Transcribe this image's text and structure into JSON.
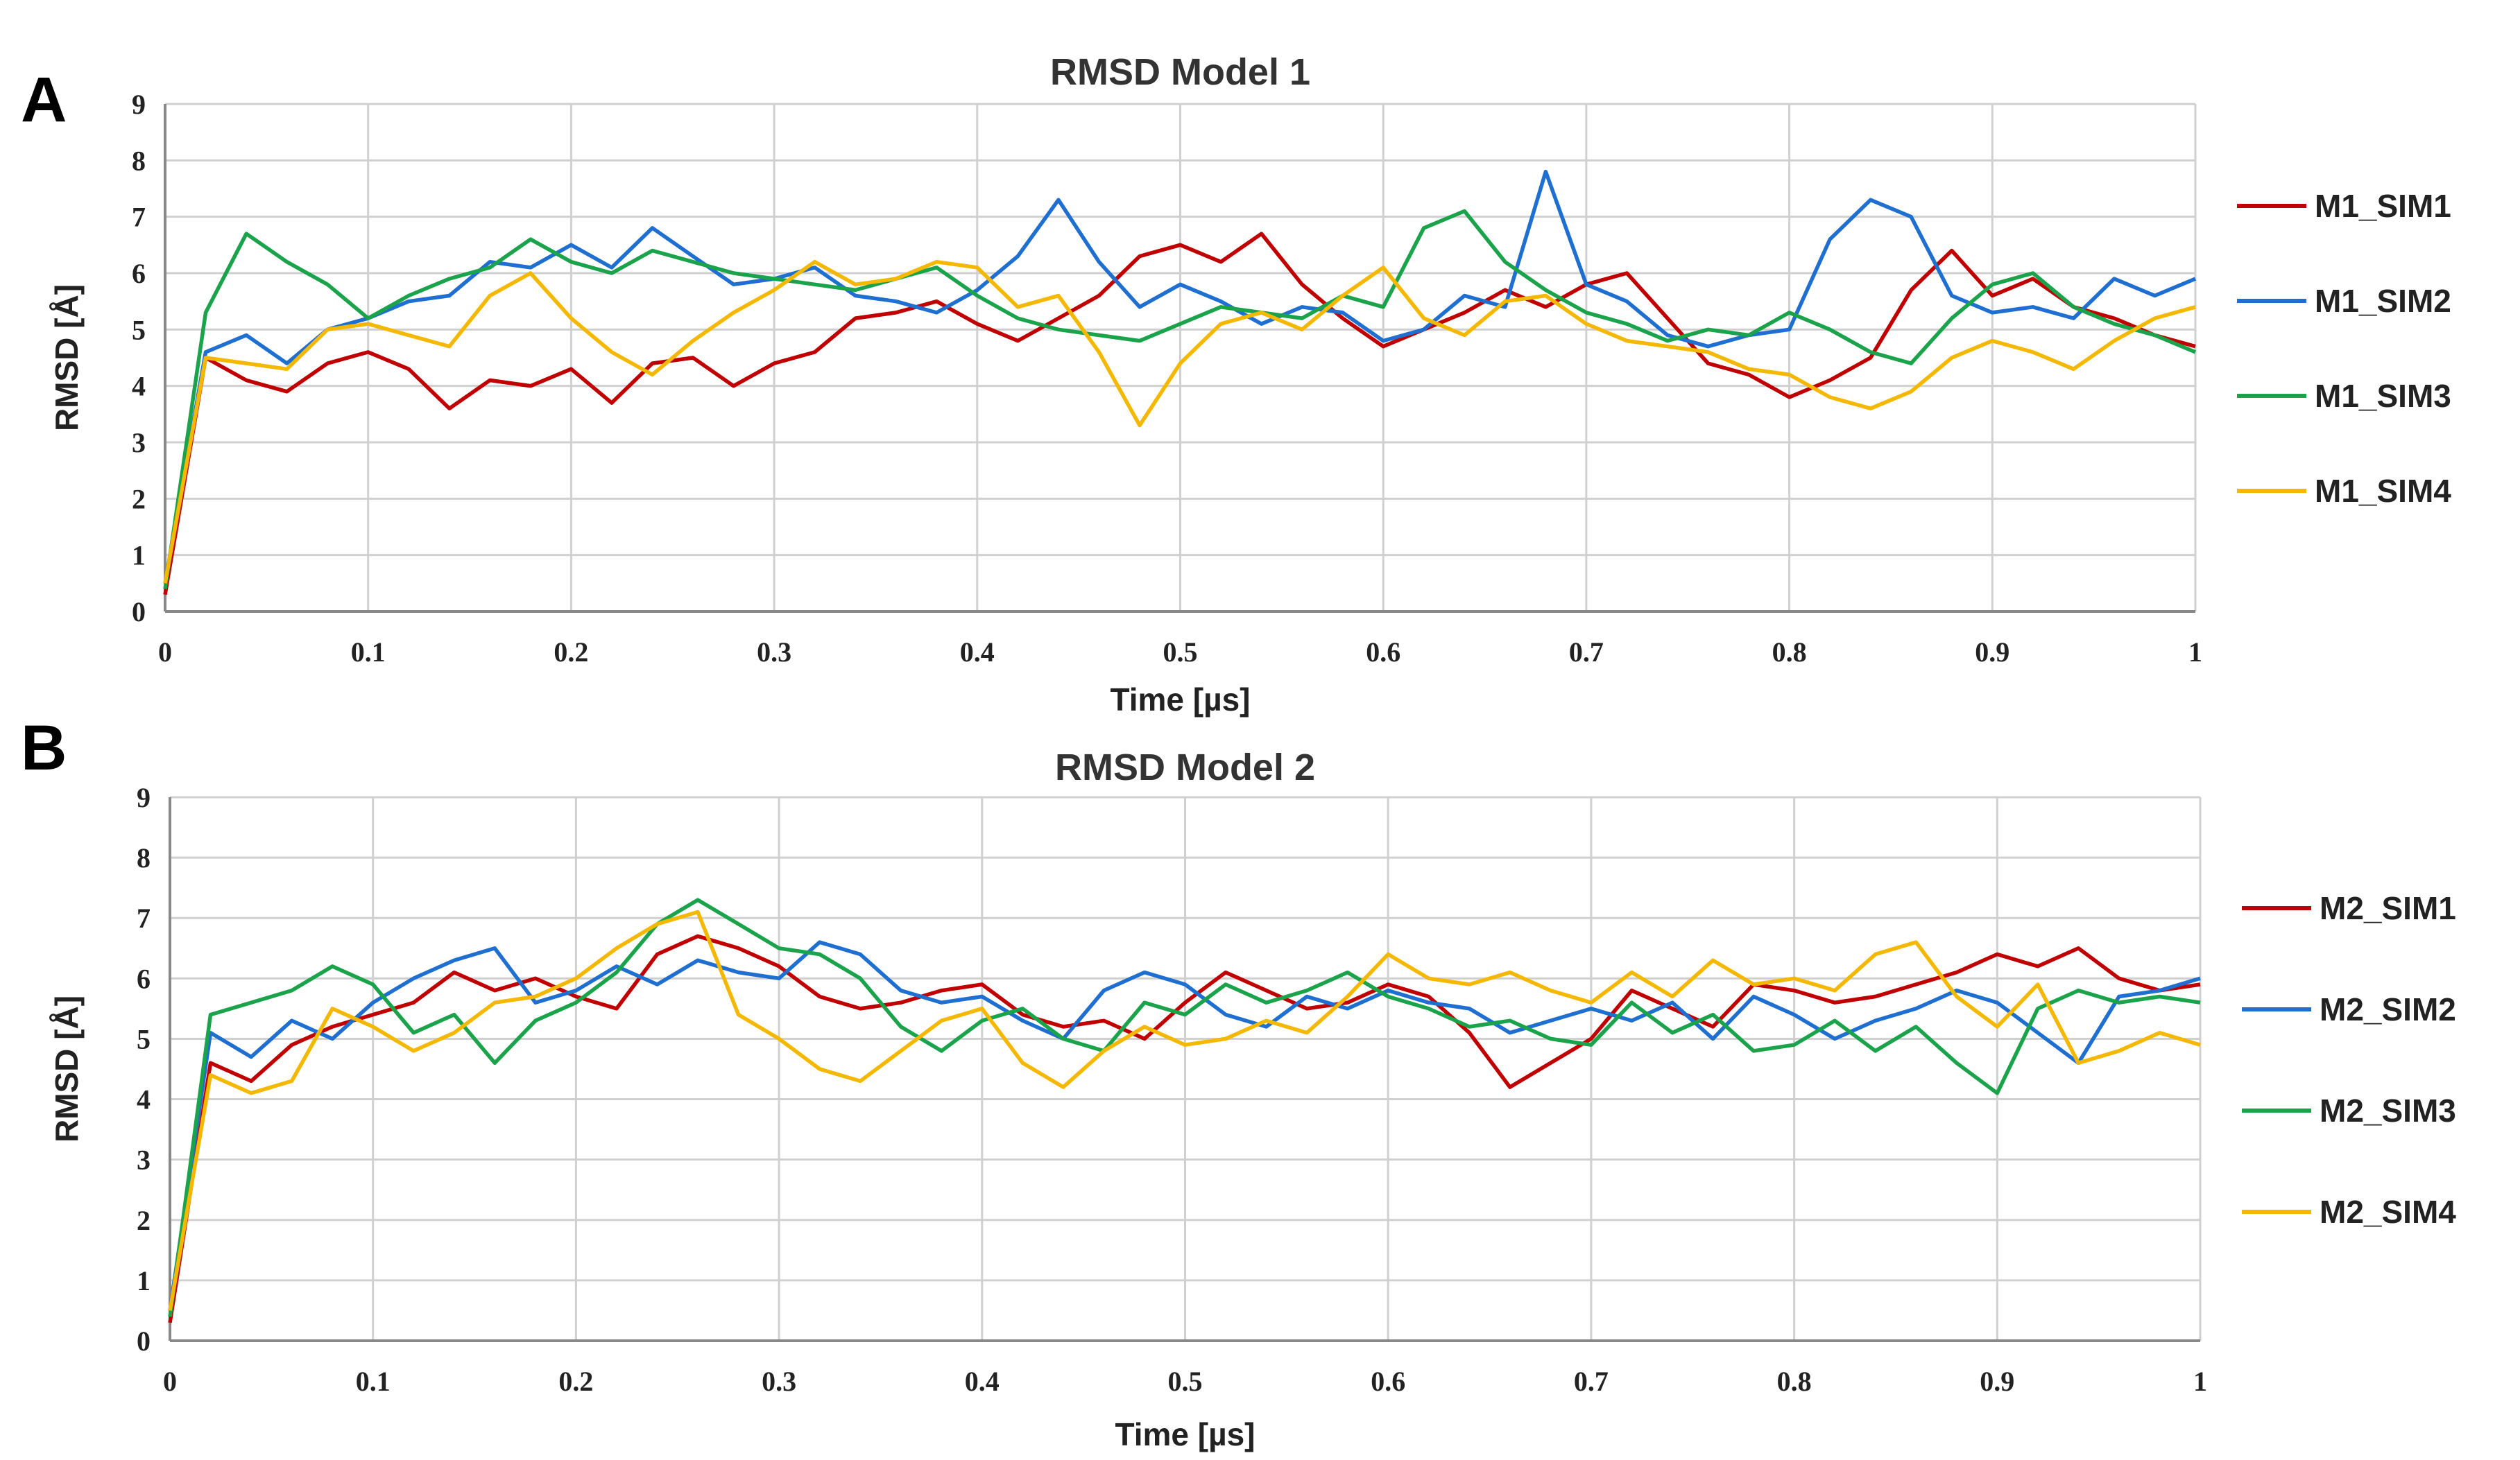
{
  "chart_data": [
    {
      "panel_label": "A",
      "type": "line",
      "title": "RMSD Model 1",
      "xlabel": "Time [µs]",
      "ylabel": "RMSD [Å]",
      "xlim": [
        0,
        1
      ],
      "ylim": [
        0,
        9
      ],
      "grid": true,
      "legend_position": "right",
      "x_ticks": [
        "0",
        "0.1",
        "0.2",
        "0.3",
        "0.4",
        "0.5",
        "0.6",
        "0.7",
        "0.8",
        "0.9",
        "1"
      ],
      "y_ticks": [
        "0",
        "1",
        "2",
        "3",
        "4",
        "5",
        "6",
        "7",
        "8",
        "9"
      ],
      "x": [
        0,
        0.02,
        0.04,
        0.06,
        0.08,
        0.1,
        0.12,
        0.14,
        0.16,
        0.18,
        0.2,
        0.22,
        0.24,
        0.26,
        0.28,
        0.3,
        0.32,
        0.34,
        0.36,
        0.38,
        0.4,
        0.42,
        0.44,
        0.46,
        0.48,
        0.5,
        0.52,
        0.54,
        0.56,
        0.58,
        0.6,
        0.62,
        0.64,
        0.66,
        0.68,
        0.7,
        0.72,
        0.74,
        0.76,
        0.78,
        0.8,
        0.82,
        0.84,
        0.86,
        0.88,
        0.9,
        0.92,
        0.94,
        0.96,
        0.98,
        1
      ],
      "series": [
        {
          "name": "M1_SIM1",
          "color": "#c00000",
          "values": [
            0.3,
            4.5,
            4.1,
            3.9,
            4.4,
            4.6,
            4.3,
            3.6,
            4.1,
            4.0,
            4.3,
            3.7,
            4.4,
            4.5,
            4.0,
            4.4,
            4.6,
            5.2,
            5.3,
            5.5,
            5.1,
            4.8,
            5.2,
            5.6,
            6.3,
            6.5,
            6.2,
            6.7,
            5.8,
            5.2,
            4.7,
            5.0,
            5.3,
            5.7,
            5.4,
            5.8,
            6.0,
            5.2,
            4.4,
            4.2,
            3.8,
            4.1,
            4.5,
            5.7,
            6.4,
            5.6,
            5.9,
            5.4,
            5.2,
            4.9,
            4.7
          ]
        },
        {
          "name": "M1_SIM2",
          "color": "#1f6fd0",
          "values": [
            0.5,
            4.6,
            4.9,
            4.4,
            5.0,
            5.2,
            5.5,
            5.6,
            6.2,
            6.1,
            6.5,
            6.1,
            6.8,
            6.3,
            5.8,
            5.9,
            6.1,
            5.6,
            5.5,
            5.3,
            5.7,
            6.3,
            7.3,
            6.2,
            5.4,
            5.8,
            5.5,
            5.1,
            5.4,
            5.3,
            4.8,
            5.0,
            5.6,
            5.4,
            7.8,
            5.8,
            5.5,
            4.9,
            4.7,
            4.9,
            5.0,
            6.6,
            7.3,
            7.0,
            5.6,
            5.3,
            5.4,
            5.2,
            5.9,
            5.6,
            5.9
          ]
        },
        {
          "name": "M1_SIM3",
          "color": "#1aa34a",
          "values": [
            0.4,
            5.3,
            6.7,
            6.2,
            5.8,
            5.2,
            5.6,
            5.9,
            6.1,
            6.6,
            6.2,
            6.0,
            6.4,
            6.2,
            6.0,
            5.9,
            5.8,
            5.7,
            5.9,
            6.1,
            5.6,
            5.2,
            5.0,
            4.9,
            4.8,
            5.1,
            5.4,
            5.3,
            5.2,
            5.6,
            5.4,
            6.8,
            7.1,
            6.2,
            5.7,
            5.3,
            5.1,
            4.8,
            5.0,
            4.9,
            5.3,
            5.0,
            4.6,
            4.4,
            5.2,
            5.8,
            6.0,
            5.4,
            5.1,
            4.9,
            4.6
          ]
        },
        {
          "name": "M1_SIM4",
          "color": "#f5b800",
          "values": [
            0.5,
            4.5,
            4.4,
            4.3,
            5.0,
            5.1,
            4.9,
            4.7,
            5.6,
            6.0,
            5.2,
            4.6,
            4.2,
            4.8,
            5.3,
            5.7,
            6.2,
            5.8,
            5.9,
            6.2,
            6.1,
            5.4,
            5.6,
            4.6,
            3.3,
            4.4,
            5.1,
            5.3,
            5.0,
            5.6,
            6.1,
            5.2,
            4.9,
            5.5,
            5.6,
            5.1,
            4.8,
            4.7,
            4.6,
            4.3,
            4.2,
            3.8,
            3.6,
            3.9,
            4.5,
            4.8,
            4.6,
            4.3,
            4.8,
            5.2,
            5.4
          ]
        }
      ]
    },
    {
      "panel_label": "B",
      "type": "line",
      "title": "RMSD Model 2",
      "xlabel": "Time [µs]",
      "ylabel": "RMSD [Å]",
      "xlim": [
        0,
        1
      ],
      "ylim": [
        0,
        9
      ],
      "grid": true,
      "legend_position": "right",
      "x_ticks": [
        "0",
        "0.1",
        "0.2",
        "0.3",
        "0.4",
        "0.5",
        "0.6",
        "0.7",
        "0.8",
        "0.9",
        "1"
      ],
      "y_ticks": [
        "0",
        "1",
        "2",
        "3",
        "4",
        "5",
        "6",
        "7",
        "8",
        "9"
      ],
      "x": [
        0,
        0.02,
        0.04,
        0.06,
        0.08,
        0.1,
        0.12,
        0.14,
        0.16,
        0.18,
        0.2,
        0.22,
        0.24,
        0.26,
        0.28,
        0.3,
        0.32,
        0.34,
        0.36,
        0.38,
        0.4,
        0.42,
        0.44,
        0.46,
        0.48,
        0.5,
        0.52,
        0.54,
        0.56,
        0.58,
        0.6,
        0.62,
        0.64,
        0.66,
        0.68,
        0.7,
        0.72,
        0.74,
        0.76,
        0.78,
        0.8,
        0.82,
        0.84,
        0.86,
        0.88,
        0.9,
        0.92,
        0.94,
        0.96,
        0.98,
        1
      ],
      "series": [
        {
          "name": "M2_SIM1",
          "color": "#c00000",
          "values": [
            0.3,
            4.6,
            4.3,
            4.9,
            5.2,
            5.4,
            5.6,
            6.1,
            5.8,
            6.0,
            5.7,
            5.5,
            6.4,
            6.7,
            6.5,
            6.2,
            5.7,
            5.5,
            5.6,
            5.8,
            5.9,
            5.4,
            5.2,
            5.3,
            5.0,
            5.6,
            6.1,
            5.8,
            5.5,
            5.6,
            5.9,
            5.7,
            5.1,
            4.2,
            4.6,
            5.0,
            5.8,
            5.5,
            5.2,
            5.9,
            5.8,
            5.6,
            5.7,
            5.9,
            6.1,
            6.4,
            6.2,
            6.5,
            6.0,
            5.8,
            5.9
          ]
        },
        {
          "name": "M2_SIM2",
          "color": "#1f6fd0",
          "values": [
            0.5,
            5.1,
            4.7,
            5.3,
            5.0,
            5.6,
            6.0,
            6.3,
            6.5,
            5.6,
            5.8,
            6.2,
            5.9,
            6.3,
            6.1,
            6.0,
            6.6,
            6.4,
            5.8,
            5.6,
            5.7,
            5.3,
            5.0,
            5.8,
            6.1,
            5.9,
            5.4,
            5.2,
            5.7,
            5.5,
            5.8,
            5.6,
            5.5,
            5.1,
            5.3,
            5.5,
            5.3,
            5.6,
            5.0,
            5.7,
            5.4,
            5.0,
            5.3,
            5.5,
            5.8,
            5.6,
            5.1,
            4.6,
            5.7,
            5.8,
            6.0
          ]
        },
        {
          "name": "M2_SIM3",
          "color": "#1aa34a",
          "values": [
            0.4,
            5.4,
            5.6,
            5.8,
            6.2,
            5.9,
            5.1,
            5.4,
            4.6,
            5.3,
            5.6,
            6.1,
            6.9,
            7.3,
            6.9,
            6.5,
            6.4,
            6.0,
            5.2,
            4.8,
            5.3,
            5.5,
            5.0,
            4.8,
            5.6,
            5.4,
            5.9,
            5.6,
            5.8,
            6.1,
            5.7,
            5.5,
            5.2,
            5.3,
            5.0,
            4.9,
            5.6,
            5.1,
            5.4,
            4.8,
            4.9,
            5.3,
            4.8,
            5.2,
            4.6,
            4.1,
            5.5,
            5.8,
            5.6,
            5.7,
            5.6
          ]
        },
        {
          "name": "M2_SIM4",
          "color": "#f5b800",
          "values": [
            0.5,
            4.4,
            4.1,
            4.3,
            5.5,
            5.2,
            4.8,
            5.1,
            5.6,
            5.7,
            6.0,
            6.5,
            6.9,
            7.1,
            5.4,
            5.0,
            4.5,
            4.3,
            4.8,
            5.3,
            5.5,
            4.6,
            4.2,
            4.8,
            5.2,
            4.9,
            5.0,
            5.3,
            5.1,
            5.7,
            6.4,
            6.0,
            5.9,
            6.1,
            5.8,
            5.6,
            6.1,
            5.7,
            6.3,
            5.9,
            6.0,
            5.8,
            6.4,
            6.6,
            5.7,
            5.2,
            5.9,
            4.6,
            4.8,
            5.1,
            4.9
          ]
        }
      ]
    }
  ]
}
